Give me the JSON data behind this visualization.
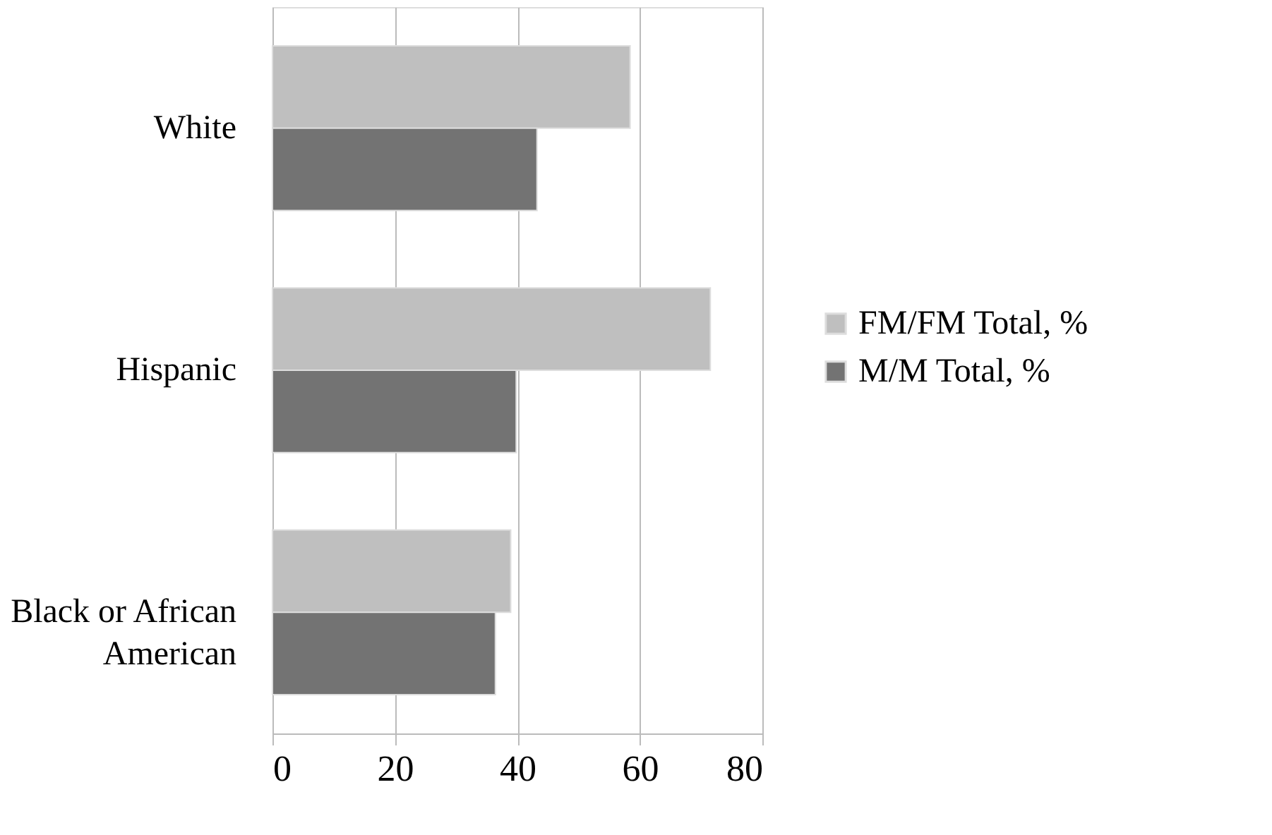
{
  "chart_data": {
    "type": "bar",
    "orientation": "horizontal",
    "categories": [
      "White",
      "Hispanic",
      "Black or African American"
    ],
    "series": [
      {
        "name": "FM/FM Total, %",
        "color": "#bfbfbf",
        "values": [
          58.4,
          71.5,
          38.9
        ]
      },
      {
        "name": "M/M Total, %",
        "color": "#737373",
        "values": [
          43.2,
          39.8,
          36.4
        ]
      }
    ],
    "xlim": [
      0,
      80
    ],
    "xticks": [
      0,
      20,
      40,
      60,
      80
    ],
    "grid": "x",
    "legend": "right"
  }
}
